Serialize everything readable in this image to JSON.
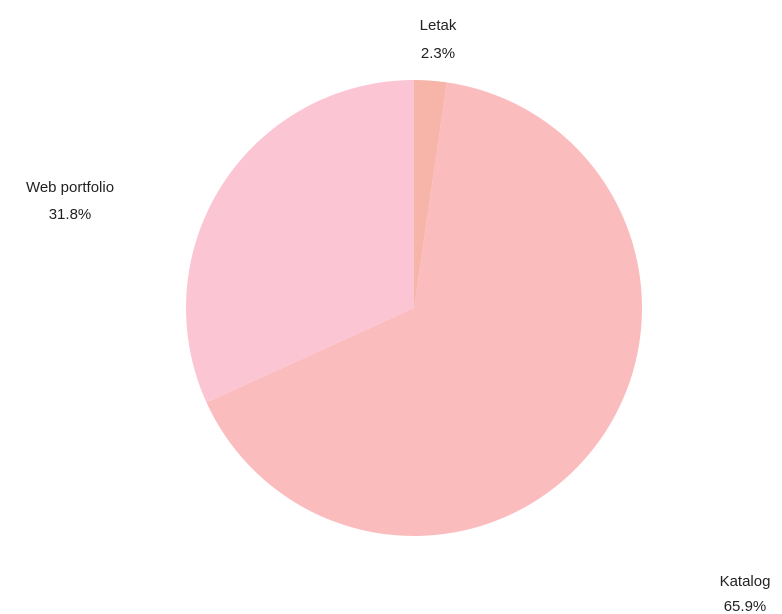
{
  "chart_data": {
    "type": "pie",
    "title": "",
    "slices": [
      {
        "label": "Letak",
        "value": 2.3,
        "percent_label": "2.3%",
        "color": "#f6b5a8"
      },
      {
        "label": "Katalog",
        "value": 65.9,
        "percent_label": "65.9%",
        "color": "#fbbcbd"
      },
      {
        "label": "Web portfolio",
        "value": 31.8,
        "percent_label": "31.8%",
        "color": "#fcc5d3"
      }
    ],
    "start_angle_deg": 0,
    "direction": "clockwise",
    "legend": "none"
  }
}
